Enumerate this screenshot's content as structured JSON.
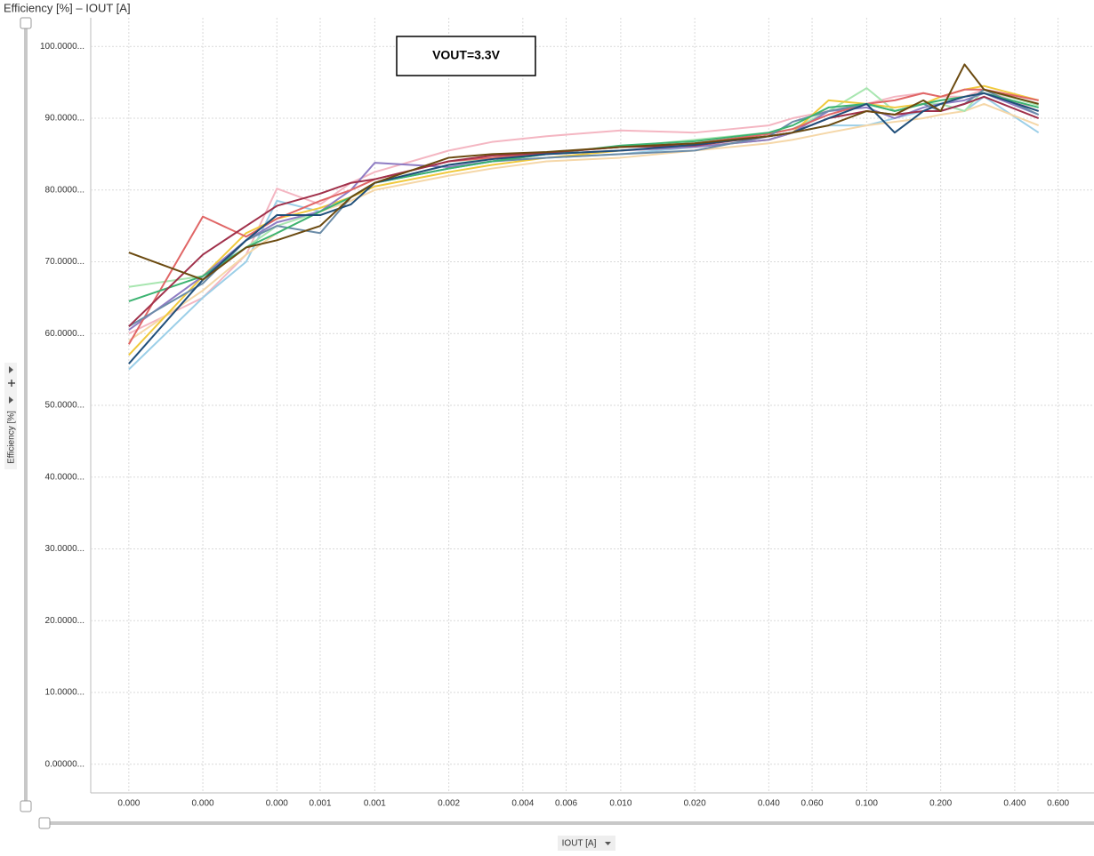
{
  "chart_data": {
    "type": "line",
    "title": "Efficiency [%] – IOUT [A]",
    "annotation": "VOUT=3.3V",
    "x_label": "IOUT [A]",
    "y_label": "Efficiency [%]",
    "x_scale": "log",
    "grid": true,
    "xlim": [
      7e-05,
      0.84
    ],
    "ylim": [
      -4,
      104
    ],
    "xticks": [
      {
        "value": 0.0001,
        "label": "0.000"
      },
      {
        "value": 0.0002,
        "label": "0.000"
      },
      {
        "value": 0.0004,
        "label": "0.000"
      },
      {
        "value": 0.0006,
        "label": "0.001"
      },
      {
        "value": 0.001,
        "label": "0.001"
      },
      {
        "value": 0.002,
        "label": "0.002"
      },
      {
        "value": 0.004,
        "label": "0.004"
      },
      {
        "value": 0.006,
        "label": "0.006"
      },
      {
        "value": 0.01,
        "label": "0.010"
      },
      {
        "value": 0.02,
        "label": "0.020"
      },
      {
        "value": 0.04,
        "label": "0.040"
      },
      {
        "value": 0.06,
        "label": "0.060"
      },
      {
        "value": 0.1,
        "label": "0.100"
      },
      {
        "value": 0.2,
        "label": "0.200"
      },
      {
        "value": 0.4,
        "label": "0.400"
      },
      {
        "value": 0.6,
        "label": "0.600"
      }
    ],
    "yticks": [
      {
        "value": 0,
        "label": "0.00000..."
      },
      {
        "value": 10,
        "label": "10.0000..."
      },
      {
        "value": 20,
        "label": "20.0000..."
      },
      {
        "value": 30,
        "label": "30.0000..."
      },
      {
        "value": 40,
        "label": "40.0000..."
      },
      {
        "value": 50,
        "label": "50.0000..."
      },
      {
        "value": 60,
        "label": "60.0000..."
      },
      {
        "value": 70,
        "label": "70.0000..."
      },
      {
        "value": 80,
        "label": "80.0000..."
      },
      {
        "value": 90,
        "label": "90.0000..."
      },
      {
        "value": 100,
        "label": "100.0000..."
      }
    ],
    "x": [
      0.0001,
      0.0002,
      0.0003,
      0.0004,
      0.0006,
      0.0008,
      0.001,
      0.002,
      0.003,
      0.005,
      0.01,
      0.02,
      0.04,
      0.05,
      0.07,
      0.1,
      0.13,
      0.17,
      0.2,
      0.25,
      0.3,
      0.5
    ],
    "series": [
      {
        "color": "#f4b6c2",
        "values": [
          60,
          65,
          71,
          80.2,
          78,
          81,
          82.5,
          85.5,
          86.7,
          87.5,
          88.3,
          88,
          89,
          90,
          91,
          92,
          93,
          93.5,
          93,
          93,
          94,
          91
        ]
      },
      {
        "color": "#9ccfe8",
        "values": [
          55,
          65,
          70,
          78.5,
          77,
          79,
          81,
          83,
          84,
          84.5,
          85,
          86,
          87,
          88,
          89,
          89,
          90,
          91,
          92,
          91,
          93,
          88
        ]
      },
      {
        "color": "#f5d7a8",
        "values": [
          59,
          66,
          71,
          74,
          77,
          78.5,
          80,
          82,
          83,
          84,
          84.5,
          85.5,
          86.5,
          87,
          88,
          89,
          89.5,
          90,
          90.5,
          91,
          92,
          89
        ]
      },
      {
        "color": "#a8e6b0",
        "values": [
          66.5,
          68,
          72,
          75,
          77,
          79,
          81,
          83.5,
          84.5,
          85.2,
          86,
          87,
          88,
          88.5,
          91,
          94.2,
          91,
          92,
          92,
          91,
          94,
          91.8
        ]
      },
      {
        "color": "#f0c93c",
        "values": [
          57,
          68,
          74,
          76,
          77.5,
          79,
          80.5,
          82.5,
          83.5,
          84.5,
          85.5,
          86,
          87,
          88,
          92.5,
          92,
          91.5,
          92,
          93,
          94,
          94.5,
          92.5
        ]
      },
      {
        "color": "#8e7cc3",
        "values": [
          60.5,
          68,
          73,
          75.5,
          77,
          80,
          83.8,
          83.2,
          84,
          85,
          85.5,
          86,
          87,
          88,
          91,
          91.5,
          90,
          91.5,
          92,
          92.5,
          93.5,
          90.5
        ]
      },
      {
        "color": "#e06666",
        "values": [
          58.5,
          76.3,
          73.5,
          76,
          78.5,
          80,
          81.5,
          84,
          84.5,
          85.2,
          86,
          86.5,
          87.8,
          88.5,
          90.5,
          92,
          92.5,
          93.5,
          93,
          94,
          94,
          92.5
        ]
      },
      {
        "color": "#6b8ca8",
        "values": [
          61,
          67,
          73,
          75,
          74,
          79,
          81,
          83,
          84,
          84.5,
          85,
          85.5,
          87.5,
          89.5,
          91,
          92,
          91,
          92,
          91,
          92,
          94,
          90.5
        ]
      },
      {
        "color": "#3cb371",
        "values": [
          64.5,
          68,
          72,
          74,
          77,
          79,
          81,
          83,
          84,
          85,
          86.2,
          86.8,
          88,
          89,
          91.5,
          92,
          91,
          92,
          92.5,
          93,
          93.5,
          91.5
        ]
      },
      {
        "color": "#a0304a",
        "values": [
          61,
          71,
          75,
          77.8,
          79.5,
          81,
          81.5,
          84,
          84.8,
          85.2,
          86,
          86.2,
          87.5,
          88,
          90,
          91,
          90.5,
          91,
          91,
          92,
          93,
          90
        ]
      },
      {
        "color": "#1f4e79",
        "values": [
          55.8,
          67.5,
          73,
          76.5,
          76.5,
          78,
          81,
          83.5,
          84.3,
          85,
          85.5,
          86.3,
          87.5,
          88,
          90,
          92,
          88,
          91,
          92,
          93,
          93.5,
          91
        ]
      },
      {
        "color": "#6b4a10",
        "values": [
          71.3,
          67.5,
          72,
          73,
          75,
          79,
          81,
          84.5,
          85,
          85.3,
          86,
          86.5,
          87.5,
          88,
          89,
          91,
          90.5,
          92.5,
          91,
          97.5,
          94,
          92
        ]
      }
    ]
  }
}
